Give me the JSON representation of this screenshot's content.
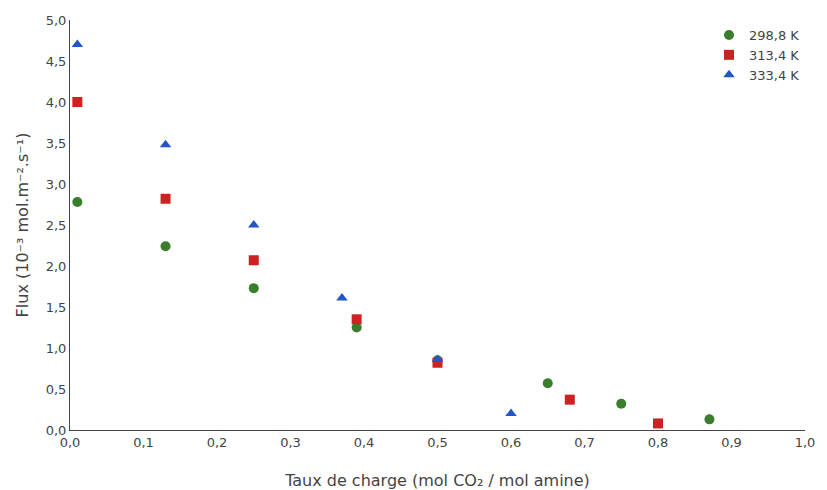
{
  "chart_data": {
    "type": "scatter",
    "xlabel": "Taux de charge (mol CO₂ / mol amine)",
    "ylabel": "Flux (10⁻³ mol.m⁻².s⁻¹)",
    "series": [
      {
        "name": "298,8 K",
        "color": "#3a7d2c",
        "marker": "circle",
        "x": [
          0.01,
          0.13,
          0.25,
          0.39,
          0.5,
          0.65,
          0.75,
          0.87
        ],
        "values": [
          2.78,
          2.24,
          1.73,
          1.25,
          0.85,
          0.57,
          0.32,
          0.13
        ]
      },
      {
        "name": "313,4 K",
        "color": "#cc2222",
        "marker": "square",
        "x": [
          0.01,
          0.13,
          0.25,
          0.39,
          0.5,
          0.68,
          0.8
        ],
        "values": [
          4.0,
          2.82,
          2.07,
          1.35,
          0.82,
          0.37,
          0.08
        ]
      },
      {
        "name": "333,4 K",
        "color": "#2255cc",
        "marker": "triangle-up",
        "x": [
          0.01,
          0.13,
          0.25,
          0.37,
          0.5,
          0.6
        ],
        "values": [
          4.7,
          3.48,
          2.5,
          1.61,
          0.86,
          0.2
        ]
      }
    ],
    "xlim": [
      0.0,
      1.0
    ],
    "ylim": [
      0.0,
      5.0
    ],
    "xticks": [
      {
        "value": 0.0,
        "label": "0,0"
      },
      {
        "value": 0.1,
        "label": "0,1"
      },
      {
        "value": 0.2,
        "label": "0,2"
      },
      {
        "value": 0.3,
        "label": "0,3"
      },
      {
        "value": 0.4,
        "label": "0,4"
      },
      {
        "value": 0.5,
        "label": "0,5"
      },
      {
        "value": 0.6,
        "label": "0,6"
      },
      {
        "value": 0.7,
        "label": "0,7"
      },
      {
        "value": 0.8,
        "label": "0,8"
      },
      {
        "value": 0.9,
        "label": "0,9"
      },
      {
        "value": 1.0,
        "label": "1,0"
      }
    ],
    "yticks": [
      {
        "value": 0.0,
        "label": "0,0"
      },
      {
        "value": 0.5,
        "label": "0,5"
      },
      {
        "value": 1.0,
        "label": "1,0"
      },
      {
        "value": 1.5,
        "label": "1,5"
      },
      {
        "value": 2.0,
        "label": "2,0"
      },
      {
        "value": 2.5,
        "label": "2,5"
      },
      {
        "value": 3.0,
        "label": "3,0"
      },
      {
        "value": 3.5,
        "label": "3,5"
      },
      {
        "value": 4.0,
        "label": "4,0"
      },
      {
        "value": 4.5,
        "label": "4,5"
      },
      {
        "value": 5.0,
        "label": "5,0"
      }
    ],
    "grid": false,
    "legend": "upper right"
  }
}
